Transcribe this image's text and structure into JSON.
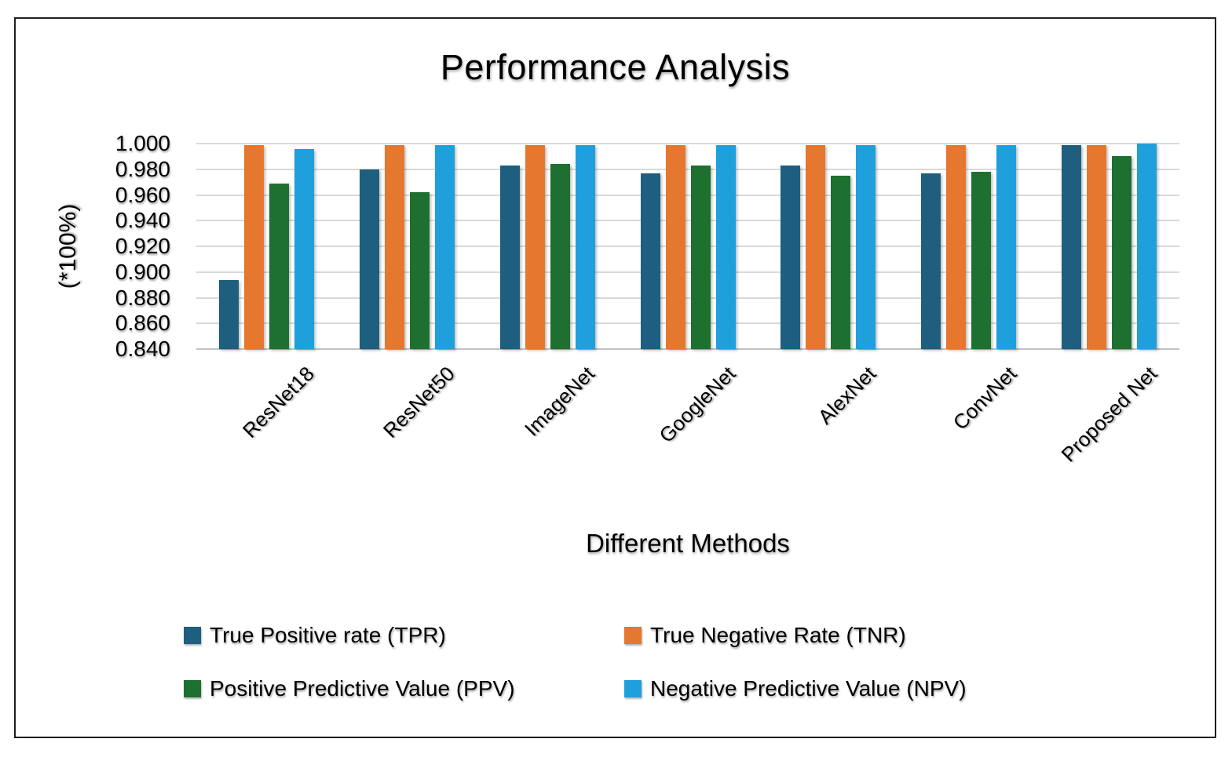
{
  "chart_data": {
    "type": "bar",
    "title": "Performance Analysis",
    "xlabel": "Different Methods",
    "ylabel": "(*100%)",
    "ylim": [
      0.84,
      1.0
    ],
    "ytick_step": 0.02,
    "yticks": [
      "1.000",
      "0.980",
      "0.960",
      "0.940",
      "0.920",
      "0.900",
      "0.880",
      "0.860",
      "0.840"
    ],
    "grid": true,
    "legend_position": "bottom",
    "categories": [
      "ResNet18",
      "ResNet50",
      "ImageNet",
      "GoogleNet",
      "AlexNet",
      "ConvNet",
      "Proposed Net"
    ],
    "series": [
      {
        "name": "True Positive rate (TPR)",
        "color": "#1E5F7F",
        "values": [
          0.894,
          0.98,
          0.983,
          0.977,
          0.983,
          0.977,
          0.999
        ]
      },
      {
        "name": "True Negative Rate (TNR)",
        "color": "#E6772F",
        "values": [
          0.999,
          0.999,
          0.999,
          0.999,
          0.999,
          0.999,
          0.999
        ]
      },
      {
        "name": "Positive Predictive Value (PPV)",
        "color": "#1E7030",
        "values": [
          0.969,
          0.962,
          0.984,
          0.983,
          0.975,
          0.978,
          0.99
        ]
      },
      {
        "name": "Negative Predictive Value (NPV)",
        "color": "#1FA0DC",
        "values": [
          0.996,
          0.999,
          0.999,
          0.999,
          0.999,
          0.999,
          1.0
        ]
      }
    ]
  }
}
